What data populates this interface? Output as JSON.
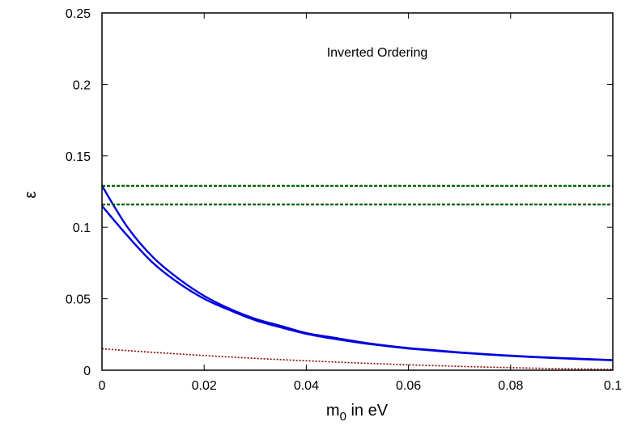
{
  "chart_data": {
    "type": "line",
    "title": "",
    "annotation": "Inverted Ordering",
    "xlabel_main": "m",
    "xlabel_sub": "0",
    "xlabel_rest": " in eV",
    "ylabel": "ε",
    "xlim": [
      0,
      0.1
    ],
    "ylim": [
      0,
      0.25
    ],
    "xticks": [
      0,
      0.02,
      0.04,
      0.06,
      0.08,
      0.1
    ],
    "xtick_labels": [
      "0",
      "0.02",
      "0.04",
      "0.06",
      "0.08",
      "0.1"
    ],
    "yticks": [
      0,
      0.05,
      0.1,
      0.15,
      0.2,
      0.25
    ],
    "ytick_labels": [
      "0",
      "0.05",
      "0.1",
      "0.15",
      "0.2",
      "0.25"
    ],
    "grid": false,
    "legend": "none",
    "series": [
      {
        "style": "solid",
        "color": "#0000dd",
        "x": [
          0,
          0.005,
          0.01,
          0.015,
          0.02,
          0.025,
          0.03,
          0.035,
          0.04,
          0.045,
          0.05,
          0.055,
          0.06,
          0.065,
          0.07,
          0.075,
          0.08,
          0.085,
          0.09,
          0.095,
          0.1
        ],
        "y": [
          0.129,
          0.1,
          0.079,
          0.064,
          0.052,
          0.043,
          0.036,
          0.031,
          0.026,
          0.023,
          0.02,
          0.0175,
          0.0155,
          0.014,
          0.0125,
          0.0113,
          0.0102,
          0.0093,
          0.0085,
          0.0078,
          0.0071
        ]
      },
      {
        "style": "solid",
        "color": "#0000dd",
        "x": [
          0,
          0.005,
          0.01,
          0.015,
          0.02,
          0.025,
          0.03,
          0.035,
          0.04,
          0.045,
          0.05,
          0.055,
          0.06,
          0.065,
          0.07,
          0.075,
          0.08,
          0.085,
          0.09,
          0.095,
          0.1
        ],
        "y": [
          0.115,
          0.094,
          0.075,
          0.061,
          0.05,
          0.042,
          0.035,
          0.03,
          0.0255,
          0.0222,
          0.0195,
          0.0172,
          0.0152,
          0.0137,
          0.0123,
          0.0111,
          0.01,
          0.0091,
          0.0083,
          0.0076,
          0.007
        ]
      },
      {
        "style": "dashed",
        "color": "#006400",
        "x": [
          0,
          0.1
        ],
        "y": [
          0.129,
          0.129
        ]
      },
      {
        "style": "dashed",
        "color": "#006400",
        "x": [
          0,
          0.1
        ],
        "y": [
          0.116,
          0.116
        ]
      },
      {
        "style": "dotted",
        "color": "#8b0000",
        "x": [
          0,
          0.01,
          0.02,
          0.03,
          0.04,
          0.05,
          0.06,
          0.07,
          0.08,
          0.09,
          0.1
        ],
        "y": [
          0.015,
          0.0125,
          0.0103,
          0.0083,
          0.0066,
          0.0051,
          0.0038,
          0.0027,
          0.0018,
          0.0011,
          0.0006
        ]
      }
    ]
  }
}
